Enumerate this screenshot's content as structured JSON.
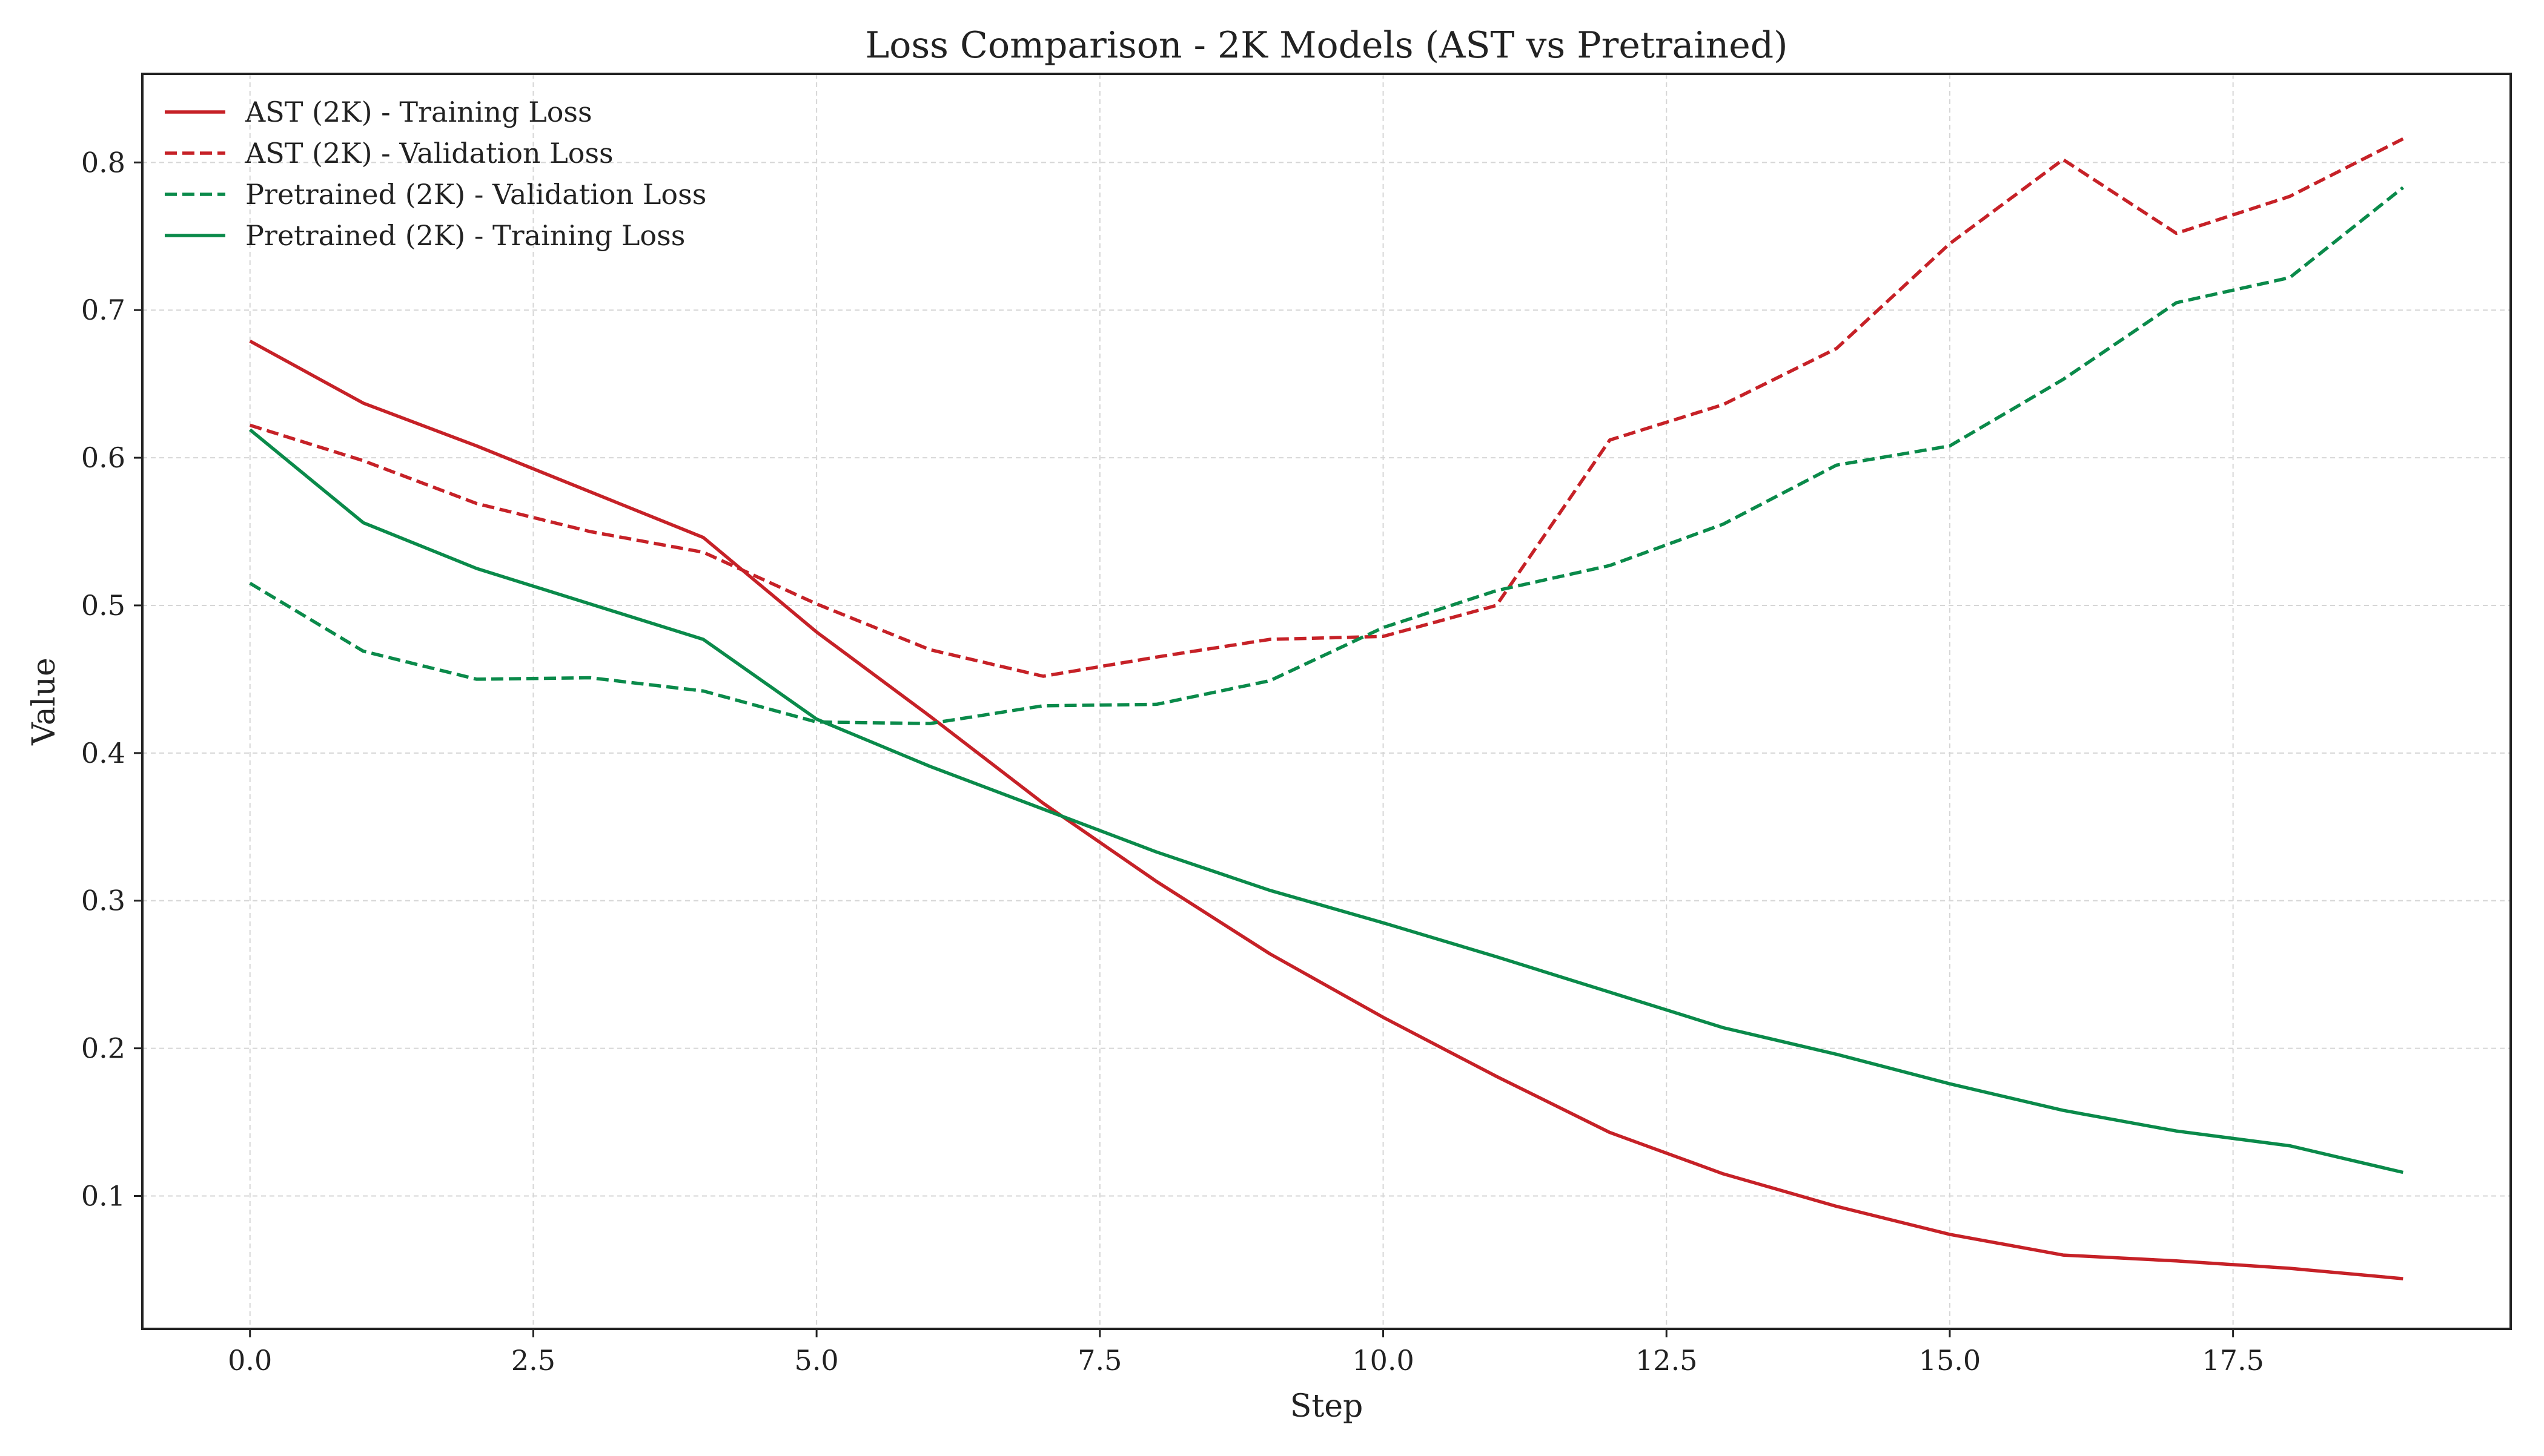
{
  "chart_data": {
    "type": "line",
    "title": "Loss Comparison - 2K Models (AST vs Pretrained)",
    "xlabel": "Step",
    "ylabel": "Value",
    "xlim": [
      -0.95,
      19.95
    ],
    "ylim": [
      0.01,
      0.86
    ],
    "xticks": [
      0,
      2.5,
      5,
      7.5,
      10,
      12.5,
      15,
      17.5
    ],
    "xtick_labels": [
      "0.0",
      "2.5",
      "5.0",
      "7.5",
      "10.0",
      "12.5",
      "15.0",
      "17.5"
    ],
    "yticks": [
      0.1,
      0.2,
      0.3,
      0.4,
      0.5,
      0.6,
      0.7,
      0.8
    ],
    "ytick_labels": [
      "0.1",
      "0.2",
      "0.3",
      "0.4",
      "0.5",
      "0.6",
      "0.7",
      "0.8"
    ],
    "grid": true,
    "legend_position": "upper-left",
    "x": [
      0,
      1,
      2,
      3,
      4,
      5,
      6,
      7,
      8,
      9,
      10,
      11,
      12,
      13,
      14,
      15,
      16,
      17,
      18,
      19
    ],
    "series": [
      {
        "name": "AST (2K) - Training Loss",
        "color": "#c62127",
        "dash": "solid",
        "values": [
          0.679,
          0.637,
          0.608,
          0.577,
          0.546,
          0.482,
          0.425,
          0.366,
          0.313,
          0.264,
          0.221,
          0.181,
          0.143,
          0.115,
          0.093,
          0.074,
          0.06,
          0.056,
          0.051,
          0.044
        ]
      },
      {
        "name": "AST (2K) - Validation Loss",
        "color": "#c62127",
        "dash": "dashed",
        "values": [
          0.622,
          0.598,
          0.569,
          0.55,
          0.536,
          0.501,
          0.47,
          0.452,
          0.465,
          0.477,
          0.479,
          0.5,
          0.612,
          0.636,
          0.674,
          0.745,
          0.802,
          0.752,
          0.777,
          0.816
        ]
      },
      {
        "name": "Pretrained (2K) - Validation Loss",
        "color": "#0a8a4a",
        "dash": "dashed",
        "values": [
          0.515,
          0.469,
          0.45,
          0.451,
          0.442,
          0.421,
          0.42,
          0.432,
          0.433,
          0.449,
          0.485,
          0.51,
          0.527,
          0.555,
          0.595,
          0.608,
          0.653,
          0.705,
          0.722,
          0.783
        ]
      },
      {
        "name": "Pretrained (2K) - Training Loss",
        "color": "#0a8a4a",
        "dash": "solid",
        "values": [
          0.619,
          0.556,
          0.525,
          0.501,
          0.477,
          0.423,
          0.391,
          0.362,
          0.333,
          0.307,
          0.285,
          0.262,
          0.238,
          0.214,
          0.196,
          0.176,
          0.158,
          0.144,
          0.134,
          0.116
        ]
      }
    ]
  }
}
